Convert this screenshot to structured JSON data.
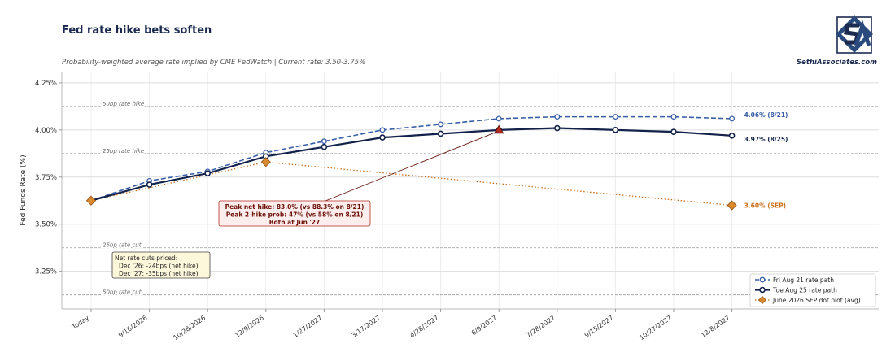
{
  "title": "Fed rate hike bets soften",
  "subtitle": "Probability-weighted average rate implied by CME FedWatch  |  Current rate: 3.50-3.75%",
  "brand": "SethiAssociates.com",
  "colors": {
    "fri": "#3a5fa8",
    "tue": "#13224a",
    "sep": "#cc6f1a",
    "sep_fill": "#d98a2e",
    "peak": "#b22b1e",
    "callout_bg": "#fdeeee",
    "callout_border": "#b22b1e",
    "cuts_bg": "#fdf8dc"
  },
  "chart_data": {
    "type": "line",
    "ylabel": "Fed Funds Rate (%)",
    "xlabel": "",
    "ylim": [
      3.05,
      4.31
    ],
    "grid": true,
    "legend_position": "bottom-right",
    "x": [
      "Today",
      "9/16/2026",
      "10/28/2026",
      "12/9/2026",
      "1/27/2027",
      "3/17/2027",
      "4/28/2027",
      "6/9/2027",
      "7/28/2027",
      "9/15/2027",
      "10/27/2027",
      "12/8/2027"
    ],
    "yticks": [
      "3.25%",
      "3.50%",
      "3.75%",
      "4.00%",
      "4.25%"
    ],
    "ytick_values": [
      3.25,
      3.5,
      3.75,
      4.0,
      4.25
    ],
    "series": [
      {
        "name": "Fri Aug 21 rate path",
        "values": [
          3.625,
          3.73,
          3.78,
          3.88,
          3.94,
          4.0,
          4.03,
          4.06,
          4.07,
          4.07,
          4.07,
          4.06
        ],
        "end_label": "4.06% (8/21)"
      },
      {
        "name": "Tue Aug 25 rate path",
        "values": [
          3.625,
          3.71,
          3.77,
          3.86,
          3.91,
          3.96,
          3.98,
          4.0,
          4.01,
          4.0,
          3.99,
          3.97
        ],
        "end_label": "3.97% (8/25)"
      },
      {
        "name": "June 2026 SEP dot plot (avg)",
        "points": [
          {
            "x": "Today",
            "y": 3.625
          },
          {
            "x": "12/9/2026",
            "y": 3.83
          },
          {
            "x": "12/8/2027",
            "y": 3.6
          }
        ],
        "end_label": "3.60% (SEP)"
      }
    ],
    "reference_lines": [
      {
        "label": "50bp rate hike",
        "y": 4.125
      },
      {
        "label": "25bp rate hike",
        "y": 3.875
      },
      {
        "label": "25bp rate cut",
        "y": 3.375
      },
      {
        "label": "50bp rate cut",
        "y": 3.125
      }
    ],
    "peak_marker": {
      "x": "6/9/2027",
      "y": 4.0
    },
    "annotations": {
      "peak_lines": [
        "Peak net hike: 83.0% (vs 88.3% on 8/21)",
        "Peak 2-hike prob: 47% (vs 58% on 8/21)",
        "Both at Jun '27"
      ],
      "cuts_lines": [
        "Net rate cuts priced:",
        "Dec '26: -24bps (net hike)",
        "Dec '27: -35bps (net hike)"
      ]
    }
  }
}
